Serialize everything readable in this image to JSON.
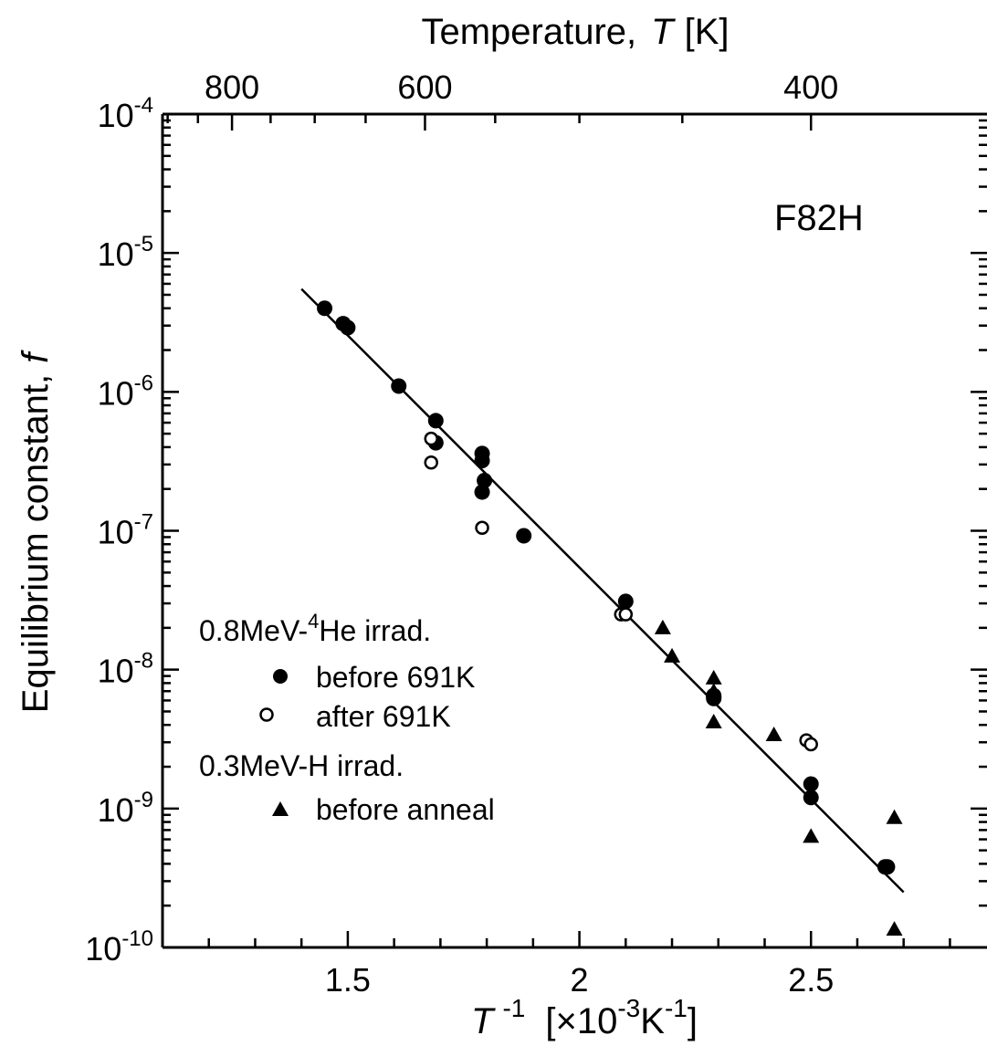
{
  "chart_data": {
    "type": "scatter",
    "x_scale": "linear",
    "y_scale": "log",
    "xlim": [
      1.1,
      2.88
    ],
    "ylim": [
      1e-10,
      0.0001
    ],
    "x_ticks": [
      1.5,
      2,
      2.5
    ],
    "x_tick_labels": [
      "1.5",
      "2",
      "2.5"
    ],
    "y_tick_exponents": [
      "-10",
      "-9",
      "-8",
      "-7",
      "-6",
      "-5",
      "-4"
    ],
    "y_tick_base": "10",
    "top_axis": {
      "title_main": "Temperature,",
      "title_var": "T",
      "title_unit": "[K]",
      "ticks_K": [
        800,
        600,
        400
      ],
      "tick_labels": [
        "800",
        "600",
        "400"
      ]
    },
    "xlabel": {
      "var": "T",
      "exp": "-1",
      "unit_open": "[×10",
      "unit_exp1": "-3",
      "unit_mid": "K",
      "unit_exp2": "-1",
      "unit_close": "]"
    },
    "ylabel": {
      "main": "Equilibrium  constant,",
      "var": "f"
    },
    "annotation": "F82H",
    "legend": {
      "group1_title_pre": "0.8MeV-",
      "group1_title_sup": "4",
      "group1_title_post": "He  irrad.",
      "group2_title": "0.3MeV-H  irrad.",
      "entries": [
        "before  691K",
        "after  691K",
        "before  anneal"
      ]
    },
    "fit_line": {
      "x": [
        1.4,
        2.7
      ],
      "y": [
        5.5e-06,
        2.5e-10
      ]
    },
    "series": [
      {
        "marker": "filled-circle",
        "points": [
          [
            1.45,
            4e-06
          ],
          [
            1.49,
            3.1e-06
          ],
          [
            1.5,
            2.9e-06
          ],
          [
            1.61,
            1.1e-06
          ],
          [
            1.69,
            6.2e-07
          ],
          [
            1.69,
            4.3e-07
          ],
          [
            1.79,
            3.6e-07
          ],
          [
            1.79,
            3.2e-07
          ],
          [
            1.795,
            2.3e-07
          ],
          [
            1.79,
            1.9e-07
          ],
          [
            1.88,
            9.2e-08
          ],
          [
            2.1,
            3.1e-08
          ],
          [
            2.29,
            6.5e-09
          ],
          [
            2.29,
            6.2e-09
          ],
          [
            2.5,
            1.5e-09
          ],
          [
            2.5,
            1.2e-09
          ],
          [
            2.66,
            3.8e-10
          ],
          [
            2.665,
            3.8e-10
          ]
        ]
      },
      {
        "marker": "open-circle",
        "points": [
          [
            1.68,
            4.6e-07
          ],
          [
            1.68,
            3.1e-07
          ],
          [
            1.79,
            1.05e-07
          ],
          [
            2.09,
            2.5e-08
          ],
          [
            2.1,
            2.5e-08
          ],
          [
            2.49,
            3.1e-09
          ],
          [
            2.5,
            2.9e-09
          ]
        ]
      },
      {
        "marker": "filled-triangle",
        "points": [
          [
            2.18,
            2e-08
          ],
          [
            2.2,
            1.25e-08
          ],
          [
            2.29,
            8.7e-09
          ],
          [
            2.29,
            7e-09
          ],
          [
            2.29,
            4.2e-09
          ],
          [
            2.42,
            3.4e-09
          ],
          [
            2.5,
            6.3e-10
          ],
          [
            2.68,
            8.6e-10
          ],
          [
            2.68,
            1.35e-10
          ]
        ]
      }
    ]
  }
}
